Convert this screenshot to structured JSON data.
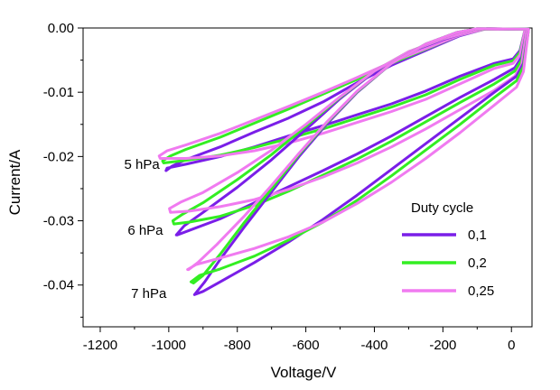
{
  "chart_data": {
    "type": "line",
    "xlabel": "Voltage/V",
    "ylabel": "Current/A",
    "xlim": [
      -1250,
      60
    ],
    "ylim": [
      -0.0465,
      0.0
    ],
    "xticks": [
      -1200,
      -1000,
      -800,
      -600,
      -400,
      -200,
      0
    ],
    "xtick_labels": [
      "-1200",
      "-1000",
      "-800",
      "-600",
      "-400",
      "-200",
      "0"
    ],
    "yticks": [
      0.0,
      -0.01,
      -0.02,
      -0.03,
      -0.04
    ],
    "ytick_labels": [
      "0.00",
      "-0.01",
      "-0.02",
      "-0.03",
      "-0.04"
    ],
    "grid": false,
    "legend": {
      "title": "Duty cycle",
      "position": "bottom-right",
      "entries": [
        {
          "name": "0,1",
          "color": "#7a1ee8"
        },
        {
          "name": "0,2",
          "color": "#33ee22"
        },
        {
          "name": "0,25",
          "color": "#f07af0"
        }
      ]
    },
    "annotations": [
      {
        "text": "5 hPa",
        "x": -1130,
        "y": -0.0212
      },
      {
        "text": "6 hPa",
        "x": -1120,
        "y": -0.0315
      },
      {
        "text": "7 hPa",
        "x": -1110,
        "y": -0.0413
      }
    ],
    "series": [
      {
        "name": "0,1",
        "pressure": "5 hPa",
        "color": "#7a1ee8",
        "x": [
          40,
          25,
          5,
          -50,
          -150,
          -250,
          -350,
          -450,
          -550,
          -650,
          -750,
          -850,
          -950,
          -1005,
          -1008,
          -990,
          -950,
          -850,
          -750,
          -650,
          -550,
          -450,
          -350,
          -250,
          -150,
          -80
        ],
        "y": [
          -0.0002,
          -0.0035,
          -0.0048,
          -0.0055,
          -0.0075,
          -0.0098,
          -0.0118,
          -0.0135,
          -0.0152,
          -0.0168,
          -0.0185,
          -0.02,
          -0.0212,
          -0.0218,
          -0.0222,
          -0.0215,
          -0.0205,
          -0.0185,
          -0.0162,
          -0.014,
          -0.0115,
          -0.0085,
          -0.0058,
          -0.0035,
          -0.0012,
          -0.0002
        ]
      },
      {
        "name": "0,2",
        "pressure": "5 hPa",
        "color": "#33ee22",
        "x": [
          40,
          25,
          5,
          -50,
          -150,
          -250,
          -350,
          -450,
          -550,
          -650,
          -750,
          -850,
          -950,
          -1015,
          -1018,
          -995,
          -950,
          -850,
          -750,
          -650,
          -550,
          -450,
          -350,
          -250,
          -150,
          -80
        ],
        "y": [
          -0.0002,
          -0.0038,
          -0.0051,
          -0.0058,
          -0.008,
          -0.0104,
          -0.0123,
          -0.014,
          -0.0157,
          -0.0172,
          -0.0186,
          -0.0198,
          -0.0206,
          -0.021,
          -0.0207,
          -0.0199,
          -0.0189,
          -0.017,
          -0.0148,
          -0.0126,
          -0.0103,
          -0.008,
          -0.0055,
          -0.0033,
          -0.0011,
          -0.0002
        ]
      },
      {
        "name": "0,25",
        "pressure": "5 hPa",
        "color": "#f07af0",
        "x": [
          40,
          25,
          5,
          -50,
          -150,
          -250,
          -350,
          -450,
          -550,
          -650,
          -750,
          -850,
          -950,
          -1025,
          -1028,
          -1005,
          -950,
          -850,
          -750,
          -650,
          -550,
          -450,
          -350,
          -250,
          -150,
          -80
        ],
        "y": [
          -0.0002,
          -0.0042,
          -0.0055,
          -0.0063,
          -0.0087,
          -0.0111,
          -0.013,
          -0.0147,
          -0.0164,
          -0.0179,
          -0.0191,
          -0.0199,
          -0.0203,
          -0.0203,
          -0.0199,
          -0.0191,
          -0.0182,
          -0.0164,
          -0.0143,
          -0.0122,
          -0.01,
          -0.0077,
          -0.0053,
          -0.0032,
          -0.0011,
          -0.0002
        ]
      },
      {
        "name": "0,1",
        "pressure": "6 hPa",
        "color": "#7a1ee8",
        "x": [
          45,
          30,
          10,
          -50,
          -150,
          -250,
          -350,
          -450,
          -550,
          -650,
          -750,
          -850,
          -940,
          -975,
          -978,
          -955,
          -900,
          -800,
          -700,
          -600,
          -500,
          -400,
          -300,
          -200,
          -120,
          -70
        ],
        "y": [
          -0.0002,
          -0.0045,
          -0.0062,
          -0.008,
          -0.0108,
          -0.0138,
          -0.0168,
          -0.0196,
          -0.0222,
          -0.0247,
          -0.0272,
          -0.0297,
          -0.0315,
          -0.0322,
          -0.0322,
          -0.0308,
          -0.0287,
          -0.0248,
          -0.0205,
          -0.0158,
          -0.011,
          -0.0068,
          -0.0038,
          -0.0018,
          -0.0005,
          -0.0001
        ]
      },
      {
        "name": "0,2",
        "pressure": "6 hPa",
        "color": "#33ee22",
        "x": [
          45,
          30,
          10,
          -50,
          -150,
          -250,
          -350,
          -450,
          -550,
          -650,
          -750,
          -850,
          -940,
          -985,
          -988,
          -960,
          -900,
          -800,
          -700,
          -600,
          -500,
          -400,
          -300,
          -200,
          -120,
          -70
        ],
        "y": [
          -0.0002,
          -0.005,
          -0.0067,
          -0.0087,
          -0.0116,
          -0.0146,
          -0.0176,
          -0.0204,
          -0.0229,
          -0.0254,
          -0.0276,
          -0.0293,
          -0.0302,
          -0.0305,
          -0.03,
          -0.029,
          -0.0272,
          -0.0236,
          -0.0197,
          -0.0153,
          -0.0108,
          -0.0067,
          -0.0037,
          -0.0017,
          -0.0005,
          -0.0001
        ]
      },
      {
        "name": "0,25",
        "pressure": "6 hPa",
        "color": "#f07af0",
        "x": [
          45,
          30,
          10,
          -50,
          -150,
          -250,
          -350,
          -450,
          -550,
          -650,
          -750,
          -850,
          -940,
          -995,
          -998,
          -965,
          -900,
          -800,
          -700,
          -600,
          -500,
          -400,
          -300,
          -200,
          -120,
          -70
        ],
        "y": [
          -0.0002,
          -0.0057,
          -0.0075,
          -0.0097,
          -0.0127,
          -0.0157,
          -0.0185,
          -0.021,
          -0.0232,
          -0.0251,
          -0.0267,
          -0.0278,
          -0.0285,
          -0.0287,
          -0.0281,
          -0.0271,
          -0.0256,
          -0.0225,
          -0.019,
          -0.015,
          -0.0107,
          -0.0067,
          -0.0037,
          -0.0017,
          -0.0005,
          -0.0001
        ]
      },
      {
        "name": "0,1",
        "pressure": "7 hPa",
        "color": "#7a1ee8",
        "x": [
          50,
          35,
          15,
          -50,
          -150,
          -250,
          -350,
          -450,
          -550,
          -650,
          -750,
          -850,
          -900,
          -925,
          -922,
          -895,
          -850,
          -780,
          -700,
          -620,
          -540,
          -450,
          -350,
          -250,
          -160,
          -100
        ],
        "y": [
          -0.0002,
          -0.0055,
          -0.0075,
          -0.01,
          -0.014,
          -0.018,
          -0.022,
          -0.026,
          -0.0298,
          -0.0333,
          -0.0365,
          -0.0395,
          -0.041,
          -0.0415,
          -0.0413,
          -0.0395,
          -0.036,
          -0.031,
          -0.0255,
          -0.02,
          -0.015,
          -0.01,
          -0.0055,
          -0.0025,
          -0.0007,
          -0.0001
        ]
      },
      {
        "name": "0,2",
        "pressure": "7 hPa",
        "color": "#33ee22",
        "x": [
          50,
          35,
          15,
          -50,
          -150,
          -250,
          -350,
          -450,
          -550,
          -650,
          -750,
          -850,
          -910,
          -935,
          -928,
          -900,
          -850,
          -780,
          -700,
          -620,
          -540,
          -450,
          -350,
          -250,
          -160,
          -100
        ],
        "y": [
          -0.0002,
          -0.006,
          -0.0082,
          -0.0108,
          -0.015,
          -0.019,
          -0.023,
          -0.0268,
          -0.0302,
          -0.033,
          -0.0355,
          -0.0375,
          -0.0385,
          -0.0395,
          -0.0397,
          -0.0385,
          -0.0352,
          -0.0303,
          -0.025,
          -0.0197,
          -0.0148,
          -0.0099,
          -0.0055,
          -0.0025,
          -0.0007,
          -0.0001
        ]
      },
      {
        "name": "0,25",
        "pressure": "7 hPa",
        "color": "#f07af0",
        "x": [
          50,
          35,
          15,
          -50,
          -150,
          -250,
          -350,
          -450,
          -550,
          -650,
          -750,
          -850,
          -920,
          -945,
          -942,
          -915,
          -860,
          -780,
          -700,
          -620,
          -540,
          -450,
          -350,
          -250,
          -160,
          -100
        ],
        "y": [
          -0.0002,
          -0.0068,
          -0.0092,
          -0.012,
          -0.0163,
          -0.0203,
          -0.024,
          -0.0273,
          -0.0302,
          -0.0325,
          -0.0343,
          -0.0358,
          -0.0368,
          -0.0376,
          -0.0376,
          -0.0365,
          -0.0337,
          -0.0293,
          -0.0245,
          -0.0195,
          -0.0147,
          -0.0098,
          -0.0055,
          -0.0025,
          -0.0007,
          -0.0001
        ]
      }
    ]
  }
}
